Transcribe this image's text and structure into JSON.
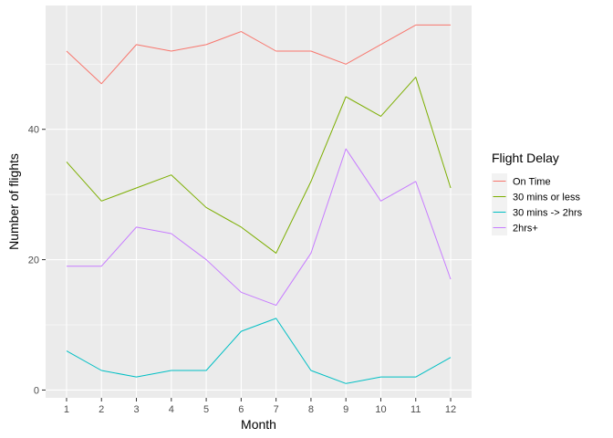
{
  "chart_data": {
    "type": "line",
    "title": "",
    "xlabel": "Month",
    "ylabel": "Number of flights",
    "x": [
      1,
      2,
      3,
      4,
      5,
      6,
      7,
      8,
      9,
      10,
      11,
      12
    ],
    "xlim": [
      0.4,
      12.6
    ],
    "ylim": [
      -1.2,
      59
    ],
    "yticks": [
      0,
      20,
      40
    ],
    "grid": true,
    "background": "#ebebeb",
    "legend": {
      "title": "Flight Delay",
      "placement": "right"
    },
    "series": [
      {
        "name": "On Time",
        "color": "#f8766d",
        "values": [
          52,
          47,
          53,
          52,
          53,
          55,
          52,
          52,
          50,
          53,
          56,
          56
        ]
      },
      {
        "name": "30 mins or less",
        "color": "#7cae00",
        "values": [
          35,
          29,
          31,
          33,
          28,
          25,
          21,
          32,
          45,
          42,
          48,
          31
        ]
      },
      {
        "name": "30 mins -> 2hrs",
        "color": "#00bfc4",
        "values": [
          6,
          3,
          2,
          3,
          3,
          9,
          11,
          3,
          1,
          2,
          2,
          5
        ]
      },
      {
        "name": "2hrs+",
        "color": "#c77cff",
        "values": [
          19,
          19,
          25,
          24,
          20,
          15,
          13,
          21,
          37,
          29,
          32,
          17
        ]
      }
    ]
  }
}
